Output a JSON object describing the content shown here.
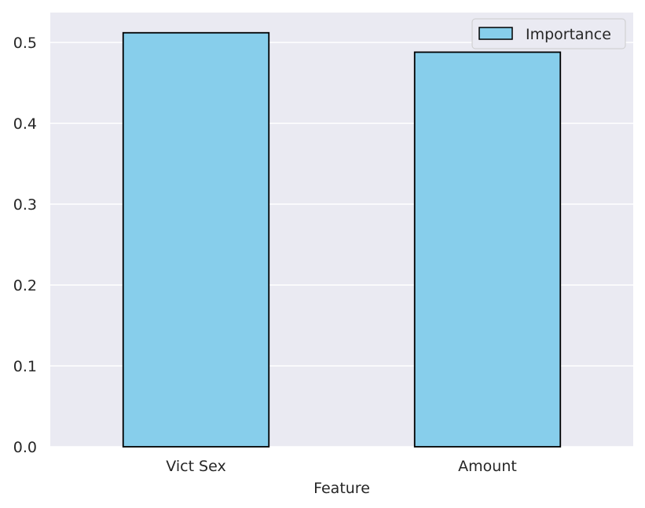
{
  "chart_data": {
    "type": "bar",
    "categories": [
      "Vict Sex",
      "Amount"
    ],
    "series": [
      {
        "name": "Importance",
        "values": [
          0.512,
          0.488
        ]
      }
    ],
    "xlabel": "Feature",
    "ylabel": "",
    "ylim": [
      0,
      0.537
    ],
    "yticks": [
      "0.0",
      "0.1",
      "0.2",
      "0.3",
      "0.4",
      "0.5"
    ],
    "grid": true,
    "legend_position": "top-right",
    "colors": {
      "bar_fill": "#87ceeb",
      "bar_edge": "#000000",
      "plot_background": "#eaeaf2",
      "grid": "#ffffff"
    }
  }
}
